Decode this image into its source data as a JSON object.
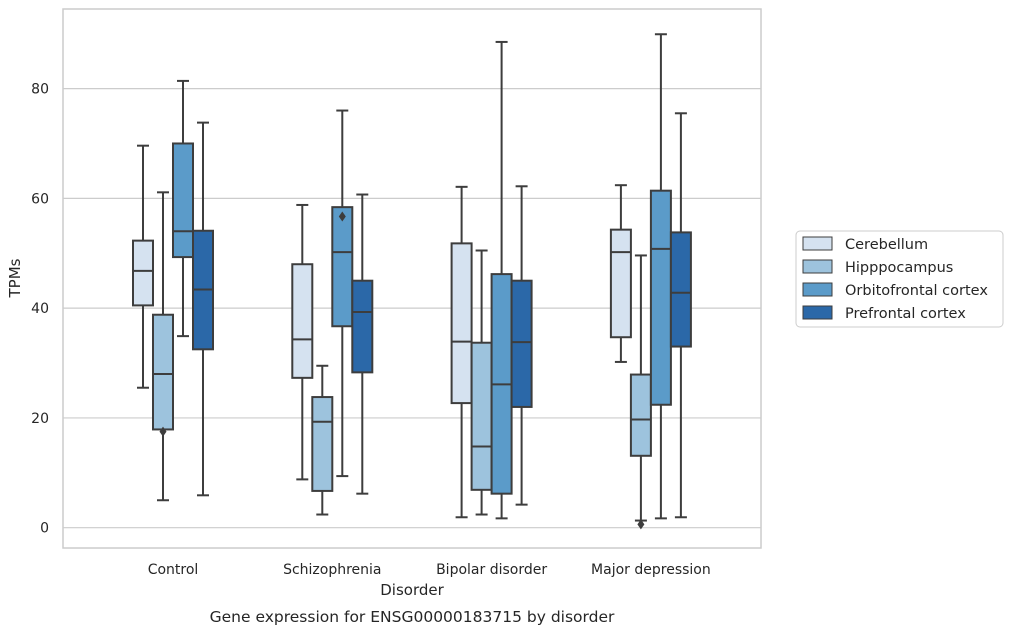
{
  "chart_data": {
    "type": "box",
    "title": "",
    "caption": "Gene expression for ENSG00000183715 by disorder",
    "xlabel": "Disorder",
    "ylabel": "TPMs",
    "ylim": [
      -3.7,
      94.5
    ],
    "yticks": [
      0,
      20,
      40,
      60,
      80
    ],
    "grid": "horizontal",
    "legend_position": "right",
    "categories": [
      "Control",
      "Schizophrenia",
      "Bipolar disorder",
      "Major depression"
    ],
    "series": [
      {
        "name": "Cerebellum",
        "color": "#d5e2f0",
        "boxes": [
          {
            "whislo": 25.5,
            "q1": 40.5,
            "med": 46.8,
            "q3": 52.3,
            "whishi": 69.6,
            "fliers": []
          },
          {
            "whislo": 8.8,
            "q1": 27.3,
            "med": 34.3,
            "q3": 48.0,
            "whishi": 58.8,
            "fliers": []
          },
          {
            "whislo": 1.9,
            "q1": 22.7,
            "med": 33.9,
            "q3": 51.8,
            "whishi": 62.1,
            "fliers": []
          },
          {
            "whislo": 30.2,
            "q1": 34.7,
            "med": 50.2,
            "q3": 54.3,
            "whishi": 62.4,
            "fliers": []
          }
        ]
      },
      {
        "name": "Hipppocampus",
        "color": "#9dc3dd",
        "boxes": [
          {
            "whislo": 5.0,
            "q1": 17.9,
            "med": 28.0,
            "q3": 38.8,
            "whishi": 61.1,
            "fliers": [
              17.5
            ]
          },
          {
            "whislo": 2.4,
            "q1": 6.7,
            "med": 19.3,
            "q3": 23.8,
            "whishi": 29.5,
            "fliers": []
          },
          {
            "whislo": 2.4,
            "q1": 6.9,
            "med": 14.8,
            "q3": 33.7,
            "whishi": 50.5,
            "fliers": []
          },
          {
            "whislo": 1.3,
            "q1": 13.1,
            "med": 19.7,
            "q3": 27.9,
            "whishi": 49.6,
            "fliers": [
              0.6
            ]
          }
        ]
      },
      {
        "name": "Orbitofrontal cortex",
        "color": "#5b9bc9",
        "boxes": [
          {
            "whislo": 34.9,
            "q1": 49.3,
            "med": 54.0,
            "q3": 70.0,
            "whishi": 81.4,
            "fliers": []
          },
          {
            "whislo": 9.4,
            "q1": 36.7,
            "med": 50.2,
            "q3": 58.4,
            "whishi": 76.0,
            "fliers": [
              56.7
            ]
          },
          {
            "whislo": 1.7,
            "q1": 6.2,
            "med": 26.1,
            "q3": 46.2,
            "whishi": 88.5,
            "fliers": []
          },
          {
            "whislo": 1.7,
            "q1": 22.4,
            "med": 50.8,
            "q3": 61.4,
            "whishi": 89.9,
            "fliers": []
          }
        ]
      },
      {
        "name": "Prefrontal cortex",
        "color": "#2b68a8",
        "boxes": [
          {
            "whislo": 5.9,
            "q1": 32.5,
            "med": 43.4,
            "q3": 54.1,
            "whishi": 73.8,
            "fliers": []
          },
          {
            "whislo": 6.2,
            "q1": 28.3,
            "med": 39.3,
            "q3": 45.0,
            "whishi": 60.7,
            "fliers": []
          },
          {
            "whislo": 4.2,
            "q1": 22.0,
            "med": 33.8,
            "q3": 45.0,
            "whishi": 62.2,
            "fliers": []
          },
          {
            "whislo": 1.9,
            "q1": 33.0,
            "med": 42.8,
            "q3": 53.8,
            "whishi": 75.5,
            "fliers": []
          }
        ]
      }
    ]
  }
}
